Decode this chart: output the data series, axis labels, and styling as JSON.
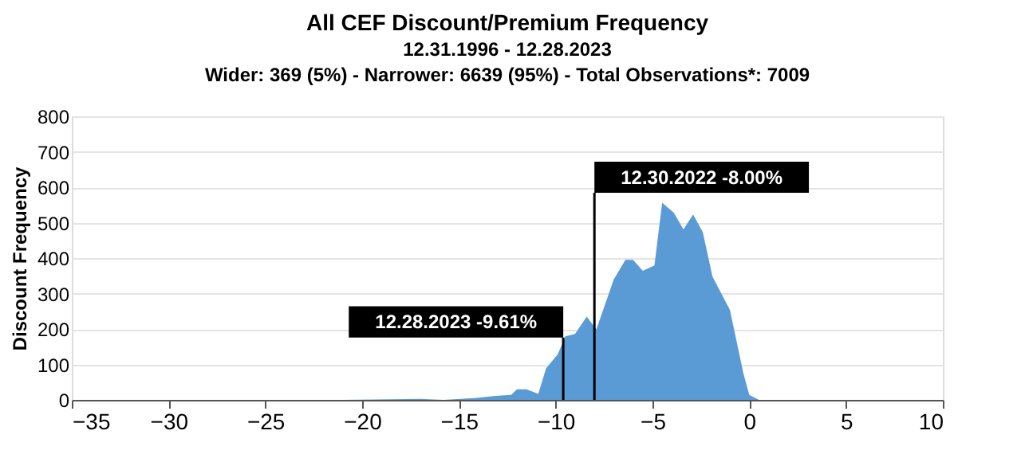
{
  "chart_data": {
    "type": "area",
    "title": "All CEF Discount/Premium Frequency",
    "subtitle": "12.31.1996 - 12.28.2023\nWider: 369 (5%) - Narrower: 6639 (95%) - Total Observations*: 7009",
    "ylabel": "Discount Frequency",
    "x": [
      -21,
      -17,
      -15.8,
      -14.2,
      -13.1,
      -12.3,
      -12.0,
      -11.5,
      -10.9,
      -10.5,
      -9.9,
      -9.5,
      -9.0,
      -8.4,
      -7.9,
      -7.0,
      -6.4,
      -6.0,
      -5.5,
      -4.9,
      -4.5,
      -3.9,
      -3.4,
      -2.9,
      -2.4,
      -1.9,
      -1.0,
      -0.3,
      0.0,
      0.5
    ],
    "series": [
      {
        "color": "#5b9bd5",
        "values": [
          0,
          3,
          0,
          5,
          11,
          14,
          30,
          30,
          17,
          89,
          128,
          179,
          186,
          235,
          199,
          340,
          395,
          395,
          364,
          379,
          556,
          528,
          481,
          523,
          473,
          348,
          254,
          74,
          14,
          0
        ]
      }
    ],
    "xlim": [
      -35,
      10
    ],
    "xticks": [
      -35,
      -30,
      -25,
      -20,
      -15,
      -10,
      -5,
      0,
      5,
      10
    ],
    "ylim": [
      0,
      800
    ],
    "yticks": [
      0,
      100,
      200,
      300,
      400,
      500,
      600,
      700,
      800
    ],
    "grid": "y",
    "ref_lines": [
      {
        "axis": "x",
        "value": -9.61,
        "label": "12.28.2023  -9.61%",
        "color": "#000000"
      },
      {
        "axis": "x",
        "value": -8.0,
        "label": "12.30.2022  -8.00%",
        "color": "#000000"
      }
    ]
  }
}
